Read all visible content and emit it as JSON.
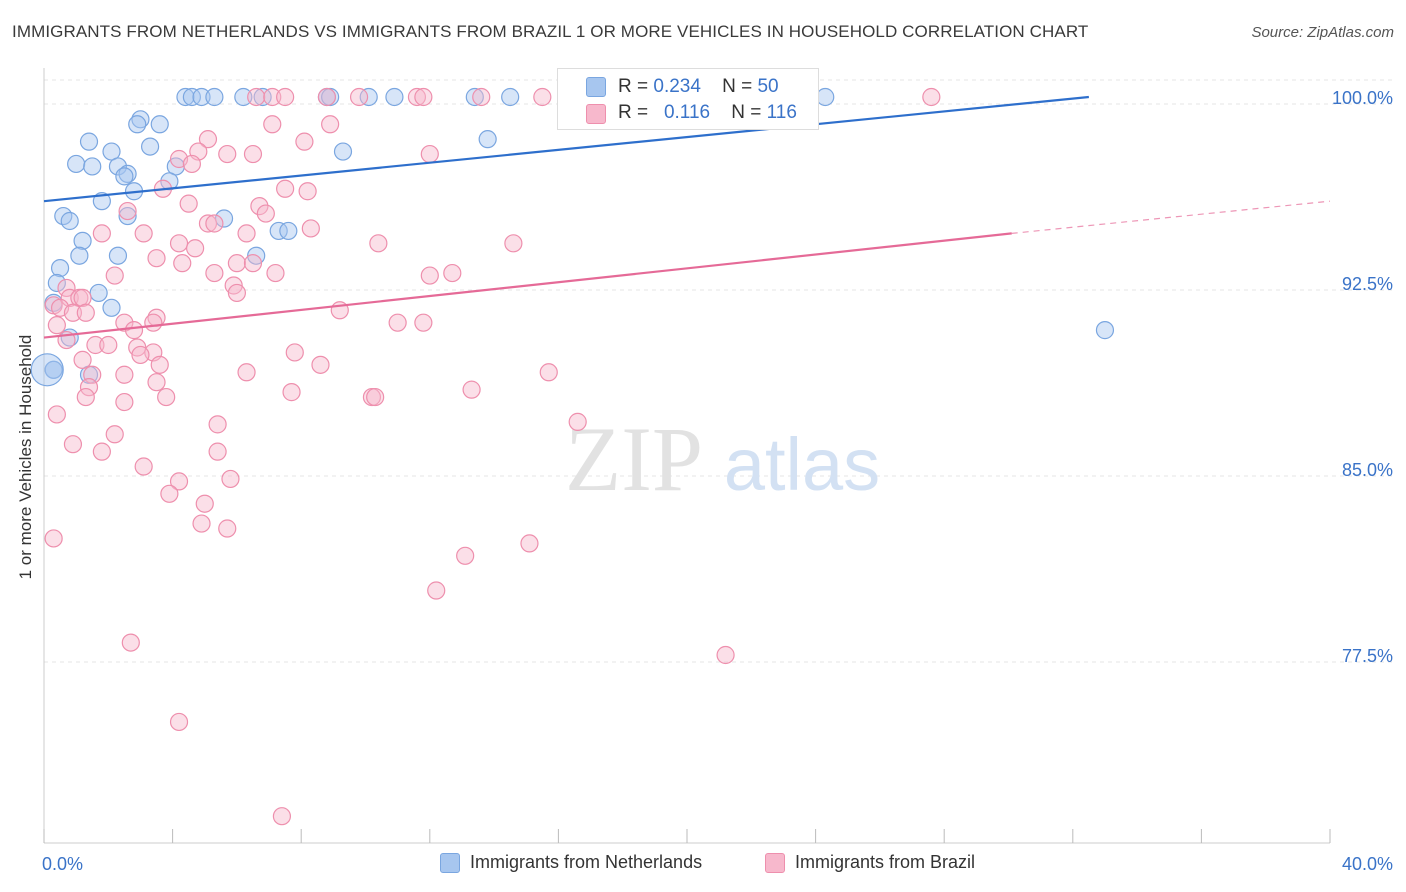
{
  "title": "IMMIGRANTS FROM NETHERLANDS VS IMMIGRANTS FROM BRAZIL 1 OR MORE VEHICLES IN HOUSEHOLD CORRELATION CHART",
  "source": "Source: ZipAtlas.com",
  "watermark": {
    "zip": "ZIP",
    "atlas": "atlas"
  },
  "stats": [
    {
      "r_label": "R =",
      "r_value": "0.234",
      "n_label": "N =",
      "n_value": "50",
      "color": "#a7c6ef",
      "border": "#7aa6e0"
    },
    {
      "r_label": "R =",
      "r_value": "0.116",
      "n_label": "N =",
      "n_value": "116",
      "color": "#f7b8cc",
      "border": "#ee8fad"
    }
  ],
  "chart_data": {
    "type": "scatter",
    "title": "IMMIGRANTS FROM NETHERLANDS VS IMMIGRANTS FROM BRAZIL 1 OR MORE VEHICLES IN HOUSEHOLD CORRELATION CHART",
    "xlabel": "",
    "ylabel": "1 or more Vehicles in Household",
    "xlim": [
      0,
      40
    ],
    "ylim": [
      70.3,
      101.5
    ],
    "x_tick_labels": [
      "0.0%",
      "40.0%"
    ],
    "y_ticks": [
      77.5,
      85.0,
      92.5,
      100.0
    ],
    "y_tick_labels": [
      "77.5%",
      "85.0%",
      "92.5%",
      "100.0%"
    ],
    "grid": "horizontal dashed",
    "legend_position": "bottom",
    "series": [
      {
        "name": "Immigrants from Netherlands",
        "color": "#7aa6e0",
        "fill": "#a7c6ef",
        "line_color": "#2e6fcc",
        "trend": {
          "x": [
            0,
            32.5
          ],
          "y": [
            95.8,
            100.0
          ],
          "dashed_to": null
        },
        "points": [
          [
            4.4,
            100
          ],
          [
            4.6,
            100
          ],
          [
            4.9,
            100
          ],
          [
            5.3,
            100
          ],
          [
            6.2,
            100
          ],
          [
            6.8,
            100
          ],
          [
            8.8,
            100
          ],
          [
            8.9,
            100
          ],
          [
            10.1,
            100
          ],
          [
            10.9,
            100
          ],
          [
            13.4,
            100
          ],
          [
            14.5,
            100
          ],
          [
            24.3,
            100
          ],
          [
            0.3,
            89.0
          ],
          [
            3.0,
            99.1
          ],
          [
            2.9,
            98.9
          ],
          [
            3.6,
            98.9
          ],
          [
            1.4,
            98.2
          ],
          [
            3.3,
            98.0
          ],
          [
            2.1,
            97.8
          ],
          [
            9.3,
            97.8
          ],
          [
            1.0,
            97.3
          ],
          [
            1.5,
            97.2
          ],
          [
            2.3,
            97.2
          ],
          [
            4.1,
            97.2
          ],
          [
            2.6,
            96.9
          ],
          [
            2.5,
            96.8
          ],
          [
            3.9,
            96.6
          ],
          [
            2.8,
            96.2
          ],
          [
            1.8,
            95.8
          ],
          [
            0.6,
            95.2
          ],
          [
            0.8,
            95.0
          ],
          [
            2.6,
            95.2
          ],
          [
            5.6,
            95.1
          ],
          [
            7.3,
            94.6
          ],
          [
            7.6,
            94.6
          ],
          [
            1.2,
            94.2
          ],
          [
            1.1,
            93.6
          ],
          [
            2.3,
            93.6
          ],
          [
            6.6,
            93.6
          ],
          [
            0.5,
            93.1
          ],
          [
            0.4,
            92.5
          ],
          [
            1.7,
            92.1
          ],
          [
            0.3,
            91.7
          ],
          [
            2.1,
            91.5
          ],
          [
            0.8,
            90.3
          ],
          [
            1.4,
            88.8
          ],
          [
            13.8,
            98.3
          ],
          [
            33.0,
            90.6
          ],
          [
            0.3,
            89.0
          ]
        ],
        "big_point": [
          0.1,
          89.0
        ]
      },
      {
        "name": "Immigrants from Brazil",
        "color": "#ee8fad",
        "fill": "#f7b8cc",
        "line_color": "#e56a97",
        "trend": {
          "x": [
            0,
            30.1
          ],
          "y": [
            90.3,
            94.5
          ],
          "dashed_to": [
            40,
            95.8
          ]
        },
        "points": [
          [
            6.6,
            100
          ],
          [
            7.1,
            100
          ],
          [
            7.5,
            100
          ],
          [
            8.8,
            100
          ],
          [
            9.8,
            100
          ],
          [
            11.6,
            100
          ],
          [
            11.8,
            100
          ],
          [
            13.6,
            100
          ],
          [
            15.5,
            100
          ],
          [
            16.4,
            100
          ],
          [
            17.1,
            100
          ],
          [
            22.0,
            100
          ],
          [
            27.6,
            100
          ],
          [
            7.1,
            98.9
          ],
          [
            8.9,
            98.9
          ],
          [
            5.1,
            98.3
          ],
          [
            8.1,
            98.2
          ],
          [
            4.8,
            97.8
          ],
          [
            5.7,
            97.7
          ],
          [
            6.5,
            97.7
          ],
          [
            4.2,
            97.5
          ],
          [
            12.0,
            97.7
          ],
          [
            4.6,
            97.3
          ],
          [
            7.5,
            96.3
          ],
          [
            3.7,
            96.3
          ],
          [
            8.2,
            96.2
          ],
          [
            6.7,
            95.6
          ],
          [
            4.5,
            95.7
          ],
          [
            2.6,
            95.4
          ],
          [
            6.9,
            95.3
          ],
          [
            5.1,
            94.9
          ],
          [
            5.3,
            94.9
          ],
          [
            3.1,
            94.5
          ],
          [
            1.8,
            94.5
          ],
          [
            6.3,
            94.5
          ],
          [
            8.3,
            94.7
          ],
          [
            4.2,
            94.1
          ],
          [
            4.7,
            93.9
          ],
          [
            10.4,
            94.1
          ],
          [
            14.6,
            94.1
          ],
          [
            3.5,
            93.5
          ],
          [
            4.3,
            93.3
          ],
          [
            6.0,
            93.3
          ],
          [
            6.5,
            93.3
          ],
          [
            12.7,
            92.9
          ],
          [
            2.2,
            92.8
          ],
          [
            5.3,
            92.9
          ],
          [
            7.2,
            92.9
          ],
          [
            12.0,
            92.8
          ],
          [
            5.9,
            92.4
          ],
          [
            6.0,
            92.1
          ],
          [
            0.7,
            92.3
          ],
          [
            0.8,
            91.9
          ],
          [
            1.1,
            91.9
          ],
          [
            1.2,
            91.9
          ],
          [
            0.3,
            91.6
          ],
          [
            0.5,
            91.5
          ],
          [
            0.9,
            91.3
          ],
          [
            1.3,
            91.3
          ],
          [
            9.2,
            91.4
          ],
          [
            3.5,
            91.1
          ],
          [
            3.4,
            90.9
          ],
          [
            2.5,
            90.9
          ],
          [
            0.4,
            90.8
          ],
          [
            11.0,
            90.9
          ],
          [
            11.8,
            90.9
          ],
          [
            2.8,
            90.6
          ],
          [
            0.7,
            90.2
          ],
          [
            1.6,
            90.0
          ],
          [
            2.0,
            90.0
          ],
          [
            2.9,
            89.9
          ],
          [
            3.4,
            89.7
          ],
          [
            7.8,
            89.7
          ],
          [
            1.2,
            89.4
          ],
          [
            3.6,
            89.2
          ],
          [
            3.0,
            89.6
          ],
          [
            8.6,
            89.2
          ],
          [
            6.3,
            88.9
          ],
          [
            1.5,
            88.8
          ],
          [
            2.5,
            88.8
          ],
          [
            3.5,
            88.5
          ],
          [
            15.7,
            88.9
          ],
          [
            1.4,
            88.3
          ],
          [
            7.7,
            88.1
          ],
          [
            10.2,
            87.9
          ],
          [
            10.3,
            87.9
          ],
          [
            13.3,
            88.2
          ],
          [
            3.8,
            87.9
          ],
          [
            1.3,
            87.9
          ],
          [
            2.5,
            87.7
          ],
          [
            0.4,
            87.2
          ],
          [
            5.4,
            86.8
          ],
          [
            16.6,
            86.9
          ],
          [
            2.2,
            86.4
          ],
          [
            0.9,
            86.0
          ],
          [
            1.8,
            85.7
          ],
          [
            5.4,
            85.7
          ],
          [
            3.1,
            85.1
          ],
          [
            5.8,
            84.6
          ],
          [
            4.2,
            84.5
          ],
          [
            3.9,
            84.0
          ],
          [
            5.0,
            83.6
          ],
          [
            4.9,
            82.8
          ],
          [
            5.7,
            82.6
          ],
          [
            0.3,
            82.2
          ],
          [
            15.1,
            82.0
          ],
          [
            13.1,
            81.5
          ],
          [
            12.2,
            80.1
          ],
          [
            2.7,
            78.0
          ],
          [
            21.2,
            77.5
          ],
          [
            4.2,
            74.8
          ],
          [
            7.4,
            71.0
          ]
        ]
      }
    ]
  },
  "legend": [
    {
      "label": "Immigrants from Netherlands",
      "color": "#a7c6ef",
      "border": "#7aa6e0"
    },
    {
      "label": "Immigrants from Brazil",
      "color": "#f7b8cc",
      "border": "#ee8fad"
    }
  ]
}
